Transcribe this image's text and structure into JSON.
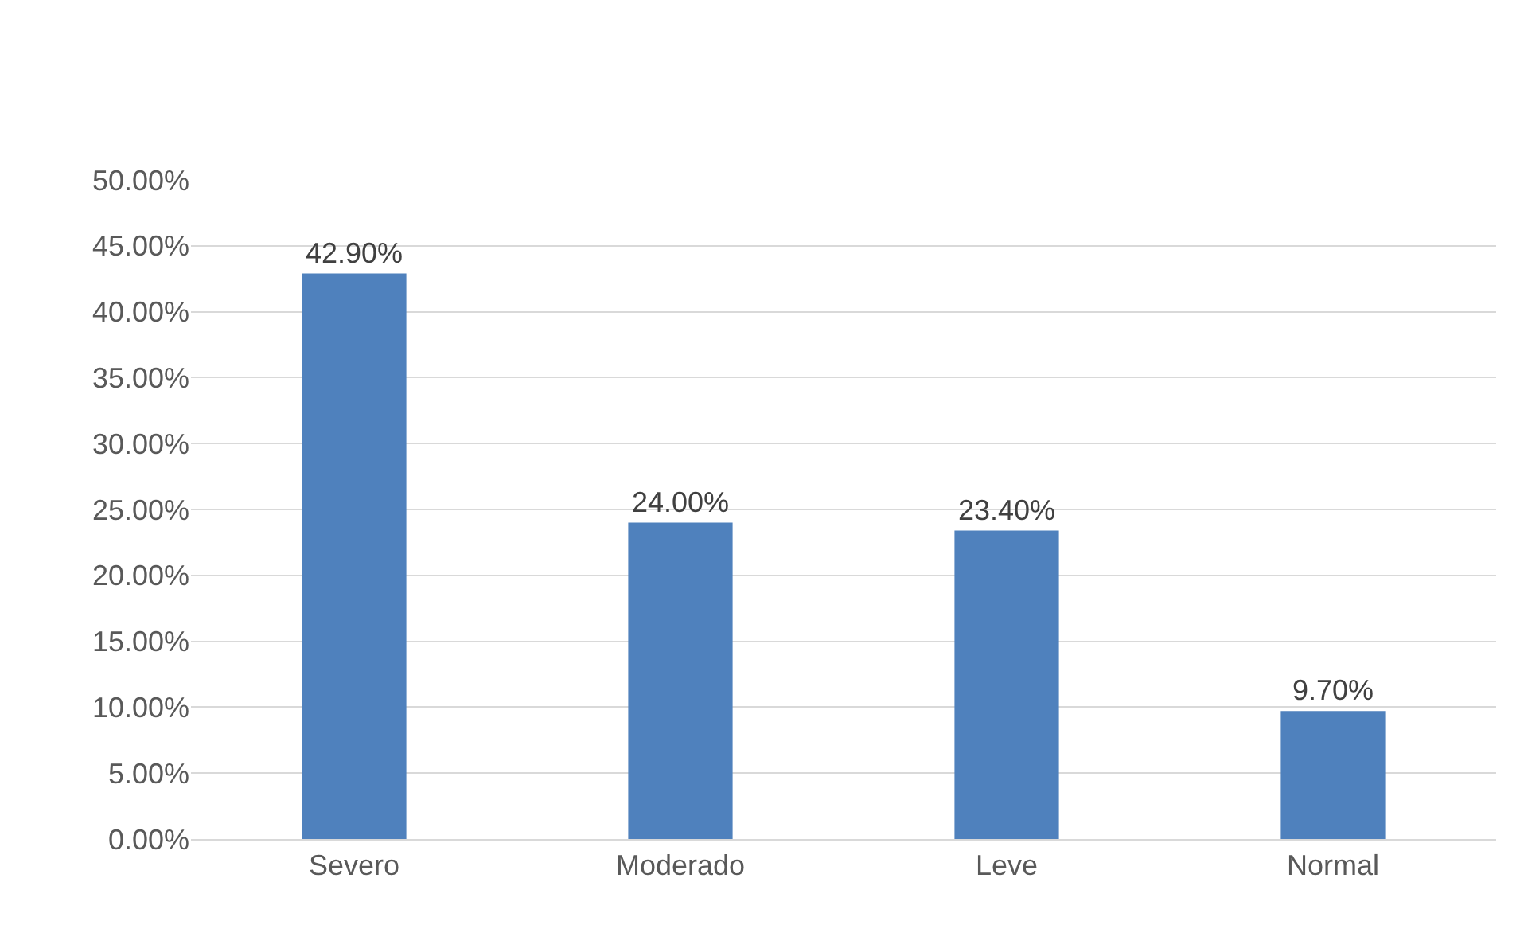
{
  "chart_data": {
    "type": "bar",
    "categories": [
      "Severo",
      "Moderado",
      "Leve",
      "Normal"
    ],
    "values": [
      42.9,
      24.0,
      23.4,
      9.7
    ],
    "value_labels": [
      "42.90%",
      "24.00%",
      "23.40%",
      "9.70%"
    ],
    "color": "#4f81bd",
    "ylim": [
      0,
      50
    ],
    "yticks": [
      {
        "value": 0,
        "label": "0.00%"
      },
      {
        "value": 5,
        "label": "5.00%"
      },
      {
        "value": 10,
        "label": "10.00%"
      },
      {
        "value": 15,
        "label": "15.00%"
      },
      {
        "value": 20,
        "label": "20.00%"
      },
      {
        "value": 25,
        "label": "25.00%"
      },
      {
        "value": 30,
        "label": "30.00%"
      },
      {
        "value": 35,
        "label": "35.00%"
      },
      {
        "value": 40,
        "label": "40.00%"
      },
      {
        "value": 45,
        "label": "45.00%"
      },
      {
        "value": 50,
        "label": "50.00%"
      }
    ],
    "grid": "y"
  }
}
